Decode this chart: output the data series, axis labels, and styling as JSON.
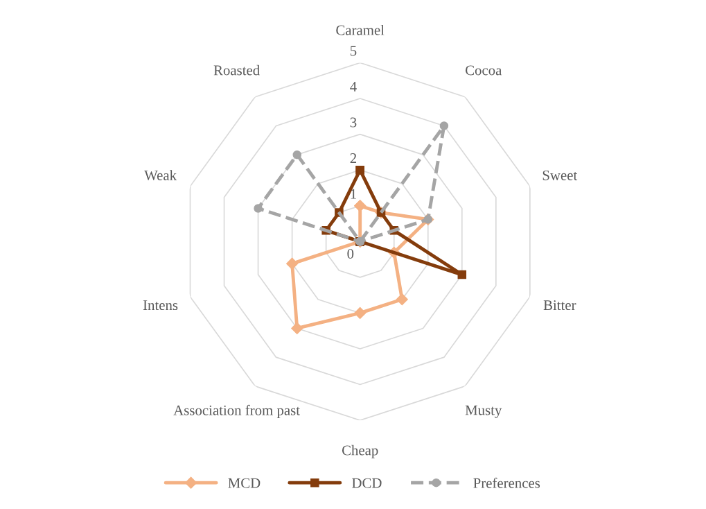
{
  "chart_data": {
    "type": "radar",
    "categories": [
      "Caramel",
      "Cocoa",
      "Sweet",
      "Bitter",
      "Musty",
      "Cheap",
      "Association from past",
      "Intens",
      "Weak",
      "Roasted"
    ],
    "series": [
      {
        "name": "MCD",
        "color": "#f4b183",
        "marker": "diamond",
        "line_style": "solid",
        "values": [
          1,
          1,
          2,
          1,
          2,
          2,
          3,
          2,
          0,
          0
        ]
      },
      {
        "name": "DCD",
        "color": "#843c0c",
        "marker": "square",
        "line_style": "solid",
        "values": [
          2,
          1,
          1,
          3,
          0,
          0,
          0,
          0,
          1,
          1
        ]
      },
      {
        "name": "Preferences",
        "color": "#a5a5a5",
        "marker": "circle",
        "line_style": "dashed",
        "values": [
          0,
          4,
          2,
          0,
          0,
          0,
          0,
          0,
          3,
          3
        ]
      }
    ],
    "ylim": [
      0,
      5
    ],
    "yticks": [
      0,
      1,
      2,
      3,
      4,
      5
    ],
    "grid": true,
    "legend": "bottom"
  }
}
